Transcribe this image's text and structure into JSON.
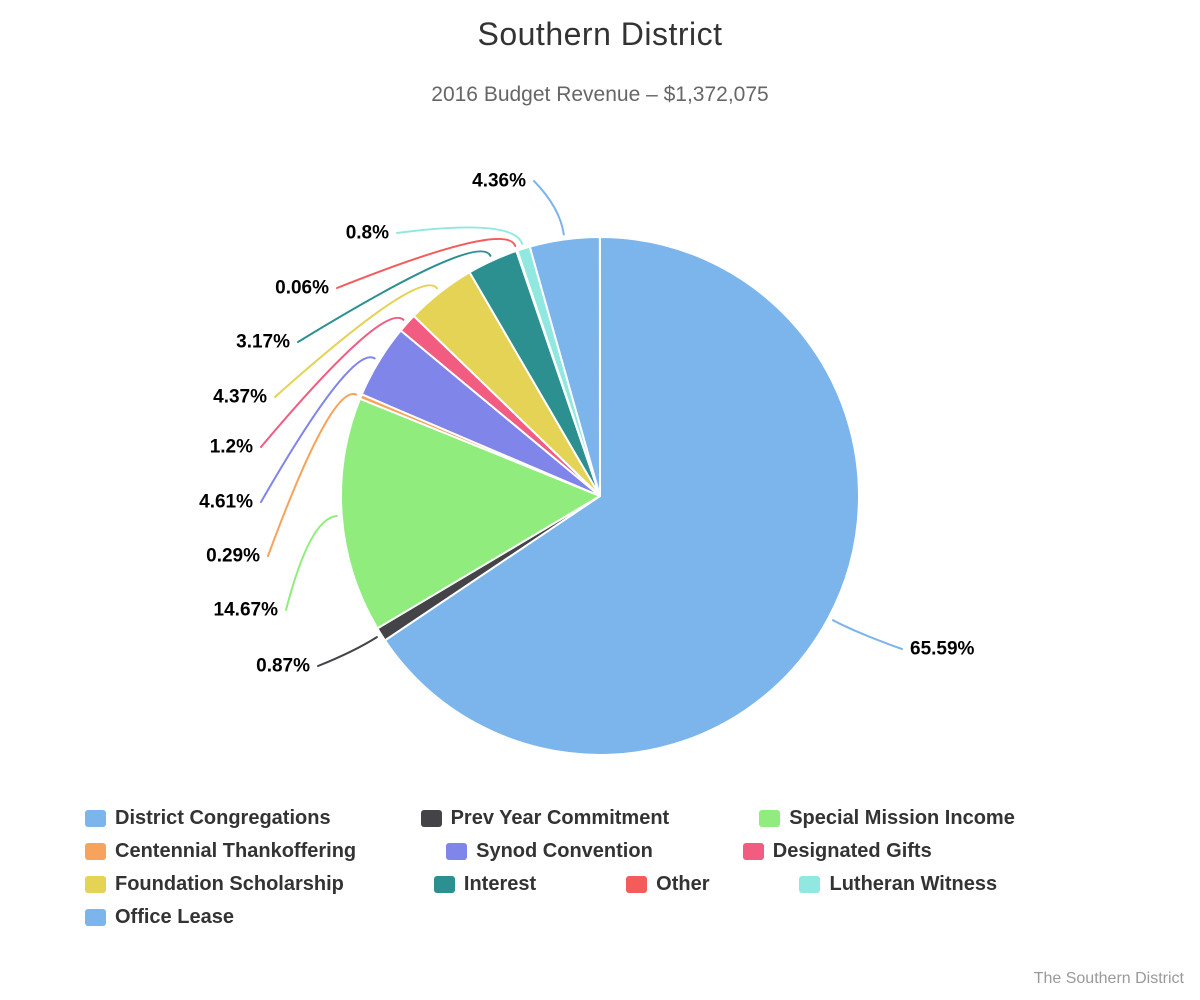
{
  "page": {
    "background": "#ffffff"
  },
  "credits": "The Southern District",
  "chart_data": {
    "type": "pie",
    "title": "Southern District",
    "subtitle": "2016 Budget Revenue – $1,372,075",
    "legend_position": "bottom",
    "direction": "clockwise",
    "start_angle_deg": 0,
    "border_color": "#ffffff",
    "slices": [
      {
        "name": "District Congregations",
        "percent": 65.59,
        "label": "65.59%",
        "color": "#7cb5ec"
      },
      {
        "name": "Prev Year Commitment",
        "percent": 0.87,
        "label": "0.87%",
        "color": "#434348"
      },
      {
        "name": "Special Mission Income",
        "percent": 14.67,
        "label": "14.67%",
        "color": "#90ed7d"
      },
      {
        "name": "Centennial Thankoffering",
        "percent": 0.29,
        "label": "0.29%",
        "color": "#f7a35c"
      },
      {
        "name": "Synod Convention",
        "percent": 4.61,
        "label": "4.61%",
        "color": "#8085e9"
      },
      {
        "name": "Designated Gifts",
        "percent": 1.2,
        "label": "1.2%",
        "color": "#f15c80"
      },
      {
        "name": "Foundation Scholarship",
        "percent": 4.37,
        "label": "4.37%",
        "color": "#e4d354"
      },
      {
        "name": "Interest",
        "percent": 3.17,
        "label": "3.17%",
        "color": "#2b908f"
      },
      {
        "name": "Other",
        "percent": 0.06,
        "label": "0.06%",
        "color": "#f45b5b"
      },
      {
        "name": "Lutheran Witness",
        "percent": 0.8,
        "label": "0.8%",
        "color": "#91e8e1"
      },
      {
        "name": "Office Lease",
        "percent": 4.36,
        "label": "4.36%",
        "color": "#7cb5ec"
      }
    ]
  }
}
